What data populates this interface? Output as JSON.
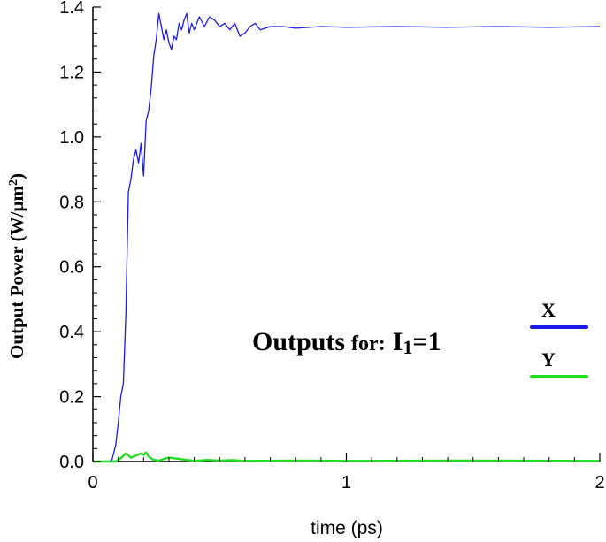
{
  "chart_data": {
    "type": "line",
    "title": "",
    "xlabel": "time (ps)",
    "ylabel_main": "Output Power  (W/µm",
    "ylabel_sup": "2",
    "ylabel_close": ")",
    "xlim": [
      0,
      2
    ],
    "ylim": [
      0,
      1.4
    ],
    "x_ticks": [
      0,
      1,
      2
    ],
    "x_tick_labels": [
      "0",
      "1",
      "2"
    ],
    "y_ticks": [
      0,
      0.2,
      0.4,
      0.6,
      0.8,
      1.0,
      1.2,
      1.4
    ],
    "y_tick_labels": [
      "0.0",
      "0.2",
      "0.4",
      "0.6",
      "0.8",
      "1.0",
      "1.2",
      "1.4"
    ],
    "grid": false,
    "legend_position": "right",
    "annotation": {
      "main": "Outputs",
      "small": "for:",
      "var": "I",
      "sub": "1",
      "eq": "=1"
    },
    "series": [
      {
        "name": "X",
        "color": "#1a1ae6",
        "x": [
          0,
          0.06,
          0.075,
          0.09,
          0.1,
          0.11,
          0.12,
          0.13,
          0.135,
          0.14,
          0.15,
          0.16,
          0.17,
          0.18,
          0.19,
          0.2,
          0.21,
          0.22,
          0.23,
          0.24,
          0.25,
          0.26,
          0.27,
          0.28,
          0.29,
          0.3,
          0.31,
          0.32,
          0.33,
          0.34,
          0.35,
          0.36,
          0.37,
          0.38,
          0.39,
          0.4,
          0.42,
          0.44,
          0.46,
          0.48,
          0.5,
          0.52,
          0.54,
          0.56,
          0.58,
          0.6,
          0.62,
          0.64,
          0.66,
          0.7,
          0.75,
          0.8,
          0.9,
          1.0,
          1.2,
          1.4,
          1.6,
          1.8,
          2.0
        ],
        "y": [
          0,
          0,
          0.005,
          0.05,
          0.12,
          0.2,
          0.24,
          0.45,
          0.65,
          0.83,
          0.87,
          0.93,
          0.96,
          0.92,
          0.98,
          0.88,
          1.05,
          1.08,
          1.15,
          1.25,
          1.3,
          1.38,
          1.34,
          1.3,
          1.33,
          1.29,
          1.27,
          1.31,
          1.3,
          1.35,
          1.33,
          1.36,
          1.38,
          1.32,
          1.35,
          1.33,
          1.37,
          1.34,
          1.37,
          1.36,
          1.34,
          1.35,
          1.33,
          1.35,
          1.31,
          1.32,
          1.34,
          1.35,
          1.33,
          1.34,
          1.34,
          1.335,
          1.34,
          1.338,
          1.34,
          1.338,
          1.34,
          1.338,
          1.34
        ]
      },
      {
        "name": "Y",
        "color": "#22dd22",
        "x": [
          0,
          0.09,
          0.11,
          0.13,
          0.15,
          0.17,
          0.19,
          0.2,
          0.21,
          0.22,
          0.24,
          0.26,
          0.28,
          0.3,
          0.32,
          0.34,
          0.36,
          0.38,
          0.4,
          0.45,
          0.5,
          0.55,
          0.6,
          0.8,
          1.0,
          1.5,
          2.0
        ],
        "y": [
          0,
          0,
          0.01,
          0.025,
          0.012,
          0.018,
          0.025,
          0.02,
          0.028,
          0.015,
          0.005,
          0.003,
          0.008,
          0.012,
          0.01,
          0.008,
          0.006,
          0.004,
          0.002,
          0.005,
          0.003,
          0.004,
          0.002,
          0.003,
          0.002,
          0.003,
          0.002
        ]
      }
    ]
  }
}
